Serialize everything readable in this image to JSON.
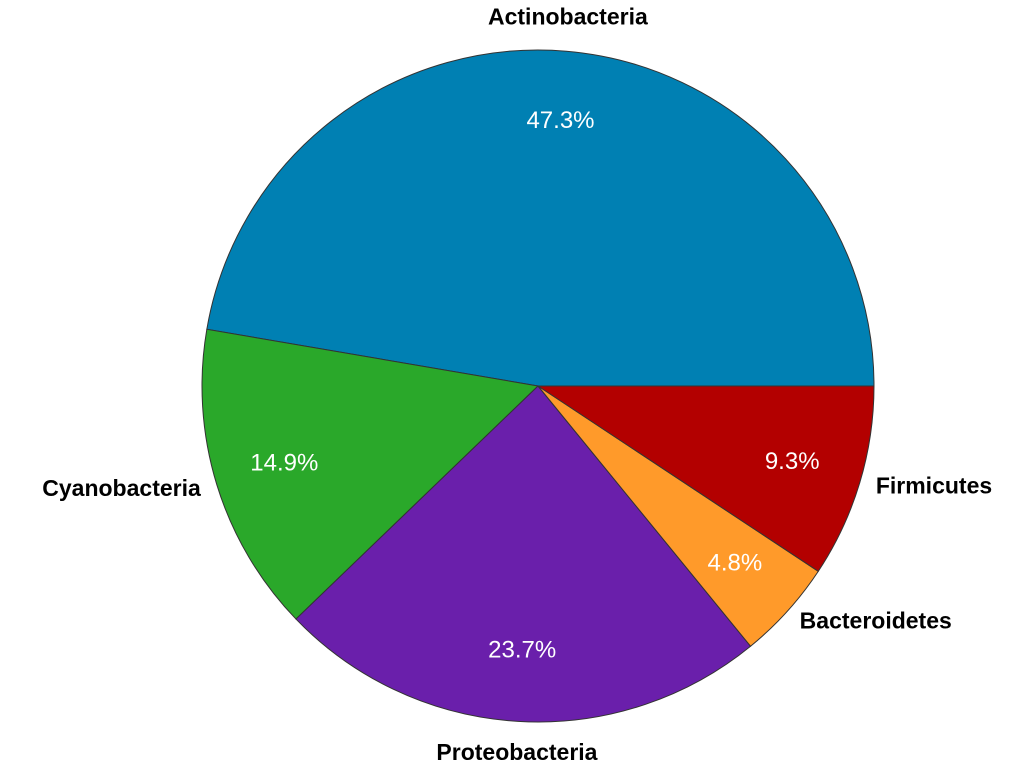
{
  "chart_data": {
    "type": "pie",
    "categories": [
      "Actinobacteria",
      "Cyanobacteria",
      "Proteobacteria",
      "Bacteroidetes",
      "Firmicutes"
    ],
    "values": [
      47.3,
      14.9,
      23.7,
      4.8,
      9.3
    ],
    "value_labels": [
      "47.3%",
      "14.9%",
      "23.7%",
      "4.8%",
      "9.3%"
    ],
    "colors": [
      "#0080b3",
      "#2aa82a",
      "#6a1fab",
      "#ff9a2a",
      "#b30000"
    ]
  }
}
